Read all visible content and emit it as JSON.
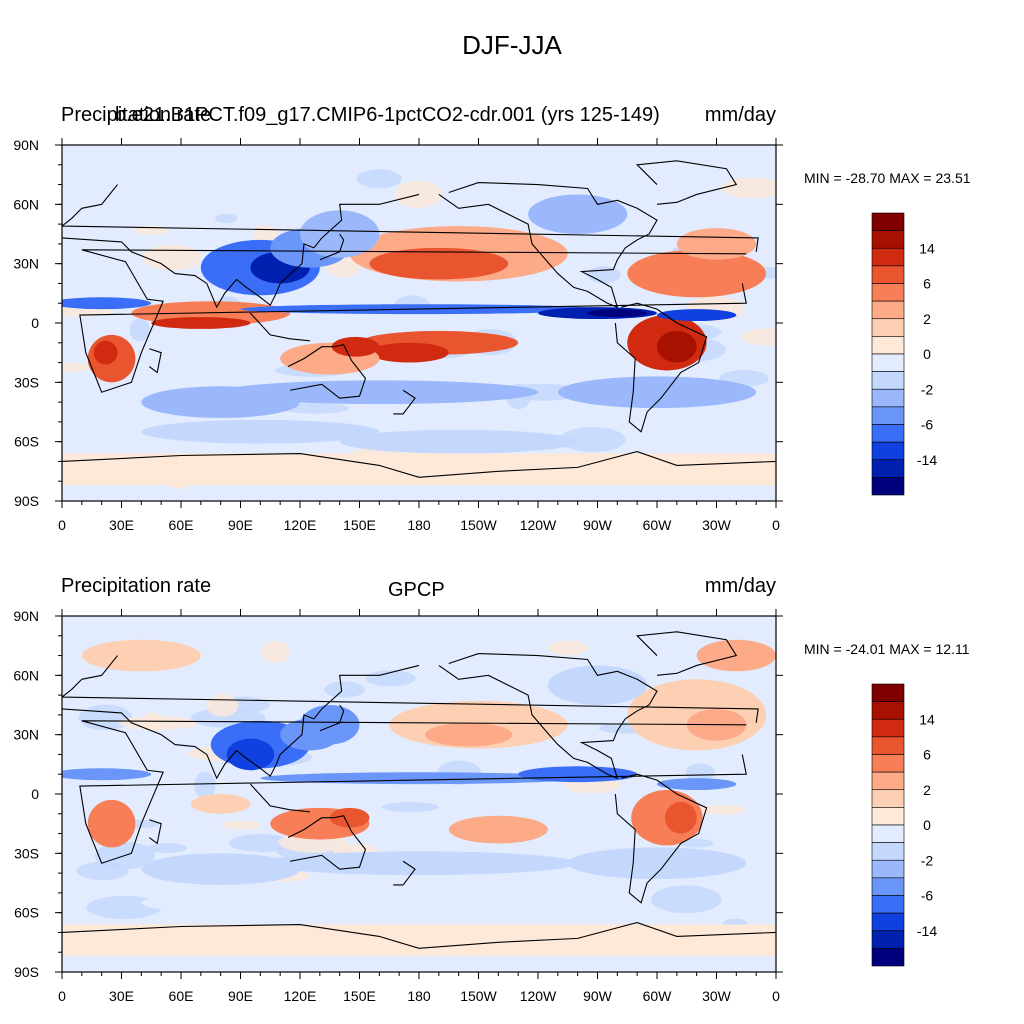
{
  "figure": {
    "title": "DJF-JJA"
  },
  "colors": {
    "levels": [
      "#00007f",
      "#0020b0",
      "#1040e0",
      "#3a6ef8",
      "#6a96fa",
      "#9ab8fb",
      "#c4d8fd",
      "#e2ecfe",
      "#fee8d8",
      "#fdd0b4",
      "#fcaa88",
      "#f77e56",
      "#e8552e",
      "#d02a10",
      "#a81000",
      "#800000"
    ],
    "land_outline": "#000000"
  },
  "colorbar": {
    "labels": [
      "14",
      "6",
      "2",
      "0",
      "-2",
      "-6",
      "-14"
    ]
  },
  "panels": [
    {
      "left_title": "Precipitation rate",
      "center_title": "b.e21.B1PCT.f09_g17.CMIP6-1pctCO2-cdr.001 (yrs 125-149)",
      "right_title": "mm/day",
      "stats": "MIN = -28.70 MAX =  23.51"
    },
    {
      "left_title": "Precipitation rate",
      "center_title": "GPCP",
      "right_title": "mm/day",
      "stats": "MIN = -24.01 MAX =  12.11"
    }
  ],
  "chart_data": [
    {
      "type": "heatmap",
      "title": "b.e21.B1PCT.f09_g17.CMIP6-1pctCO2-cdr.001 (yrs 125-149)",
      "variable": "Precipitation rate",
      "units": "mm/day",
      "min": -28.7,
      "max": 23.51,
      "x_ticks": [
        "0",
        "30E",
        "60E",
        "90E",
        "120E",
        "150E",
        "180",
        "150W",
        "120W",
        "90W",
        "60W",
        "30W",
        "0"
      ],
      "y_ticks": [
        "90N",
        "60N",
        "30N",
        "0",
        "30S",
        "60S",
        "90S"
      ],
      "colorbar_levels": [
        "14",
        "6",
        "2",
        "0",
        "-2",
        "-6",
        "-14"
      ]
    },
    {
      "type": "heatmap",
      "title": "GPCP",
      "variable": "Precipitation rate",
      "units": "mm/day",
      "min": -24.01,
      "max": 12.11,
      "x_ticks": [
        "0",
        "30E",
        "60E",
        "90E",
        "120E",
        "150E",
        "180",
        "150W",
        "120W",
        "90W",
        "60W",
        "30W",
        "0"
      ],
      "y_ticks": [
        "90N",
        "60N",
        "30N",
        "0",
        "30S",
        "60S",
        "90S"
      ],
      "colorbar_levels": [
        "14",
        "6",
        "2",
        "0",
        "-2",
        "-6",
        "-14"
      ]
    }
  ]
}
